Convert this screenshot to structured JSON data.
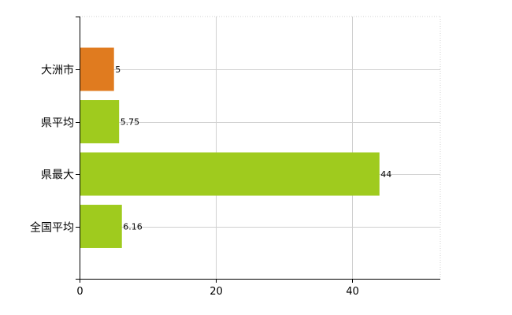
{
  "chart_data": {
    "type": "bar",
    "orientation": "horizontal",
    "categories": [
      "大洲市",
      "県平均",
      "県最大",
      "全国平均"
    ],
    "values": [
      5,
      5.75,
      44,
      6.16
    ],
    "value_labels": [
      "5",
      "5.75",
      "44",
      "6.16"
    ],
    "bar_colors": [
      "#e07b1f",
      "#9fcb1e",
      "#9fcb1e",
      "#9fcb1e"
    ],
    "xlim": [
      0,
      53
    ],
    "xticks": [
      0,
      20,
      40
    ],
    "x_tick_labels": [
      "0",
      "20",
      "40"
    ],
    "grid": true,
    "legend": "none"
  }
}
